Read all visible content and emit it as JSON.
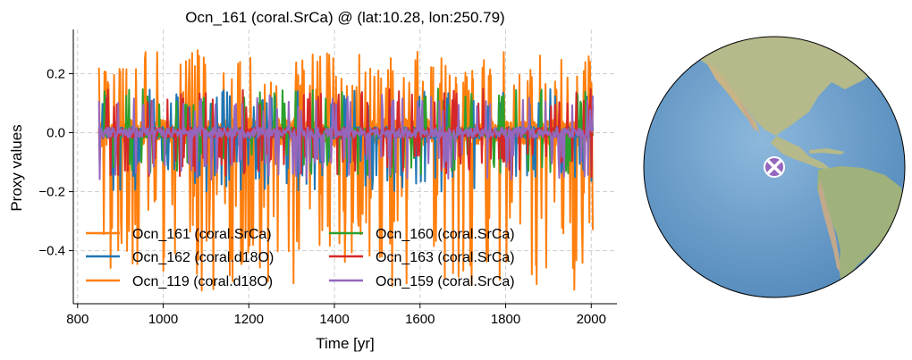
{
  "chart_data": {
    "type": "line",
    "title": "Ocn_161 (coral.SrCa) @ (lat:10.28, lon:250.79)",
    "xlabel": "Time [yr]",
    "ylabel": "Proxy values",
    "xlim": [
      790,
      2060
    ],
    "ylim": [
      -0.58,
      0.35
    ],
    "xticks": [
      800,
      1000,
      1200,
      1400,
      1600,
      1800,
      2000
    ],
    "xtick_labels": [
      "800",
      "1000",
      "1200",
      "1400",
      "1600",
      "1800",
      "2000"
    ],
    "yticks": [
      -0.4,
      -0.2,
      0.0,
      0.2
    ],
    "ytick_labels": [
      "−0.4",
      "−0.2",
      "0.0",
      "0.2"
    ],
    "grid": true,
    "legend_position": "lower-left",
    "legend_columns": 2,
    "series": [
      {
        "name": "Ocn_161 (coral.SrCa)",
        "color": "#ff7f0e",
        "x_range": [
          850,
          2005
        ],
        "amplitude": [
          -0.54,
          0.28
        ]
      },
      {
        "name": "Ocn_162 (coral.d18O)",
        "color": "#1f77b4",
        "x_range": [
          850,
          2005
        ],
        "amplitude": [
          -0.2,
          0.15
        ]
      },
      {
        "name": "Ocn_119 (coral.d18O)",
        "color": "#ff7f0e",
        "x_range": [
          850,
          2005
        ],
        "amplitude": [
          -0.45,
          0.25
        ]
      },
      {
        "name": "Ocn_160 (coral.SrCa)",
        "color": "#2ca02c",
        "x_range": [
          850,
          2005
        ],
        "amplitude": [
          -0.15,
          0.15
        ]
      },
      {
        "name": "Ocn_163 (coral.SrCa)",
        "color": "#d62728",
        "x_range": [
          850,
          2005
        ],
        "amplitude": [
          -0.15,
          0.15
        ]
      },
      {
        "name": "Ocn_159 (coral.SrCa)",
        "color": "#9467bd",
        "x_range": [
          850,
          2005
        ],
        "amplitude": [
          -0.16,
          0.13
        ]
      }
    ]
  },
  "map": {
    "projection": "orthographic",
    "site_lat": 10.28,
    "site_lon": 250.79,
    "marker_color": "#9467bd",
    "ocean_color": "#6a9cc8",
    "land_color": "#b9bf8f"
  }
}
